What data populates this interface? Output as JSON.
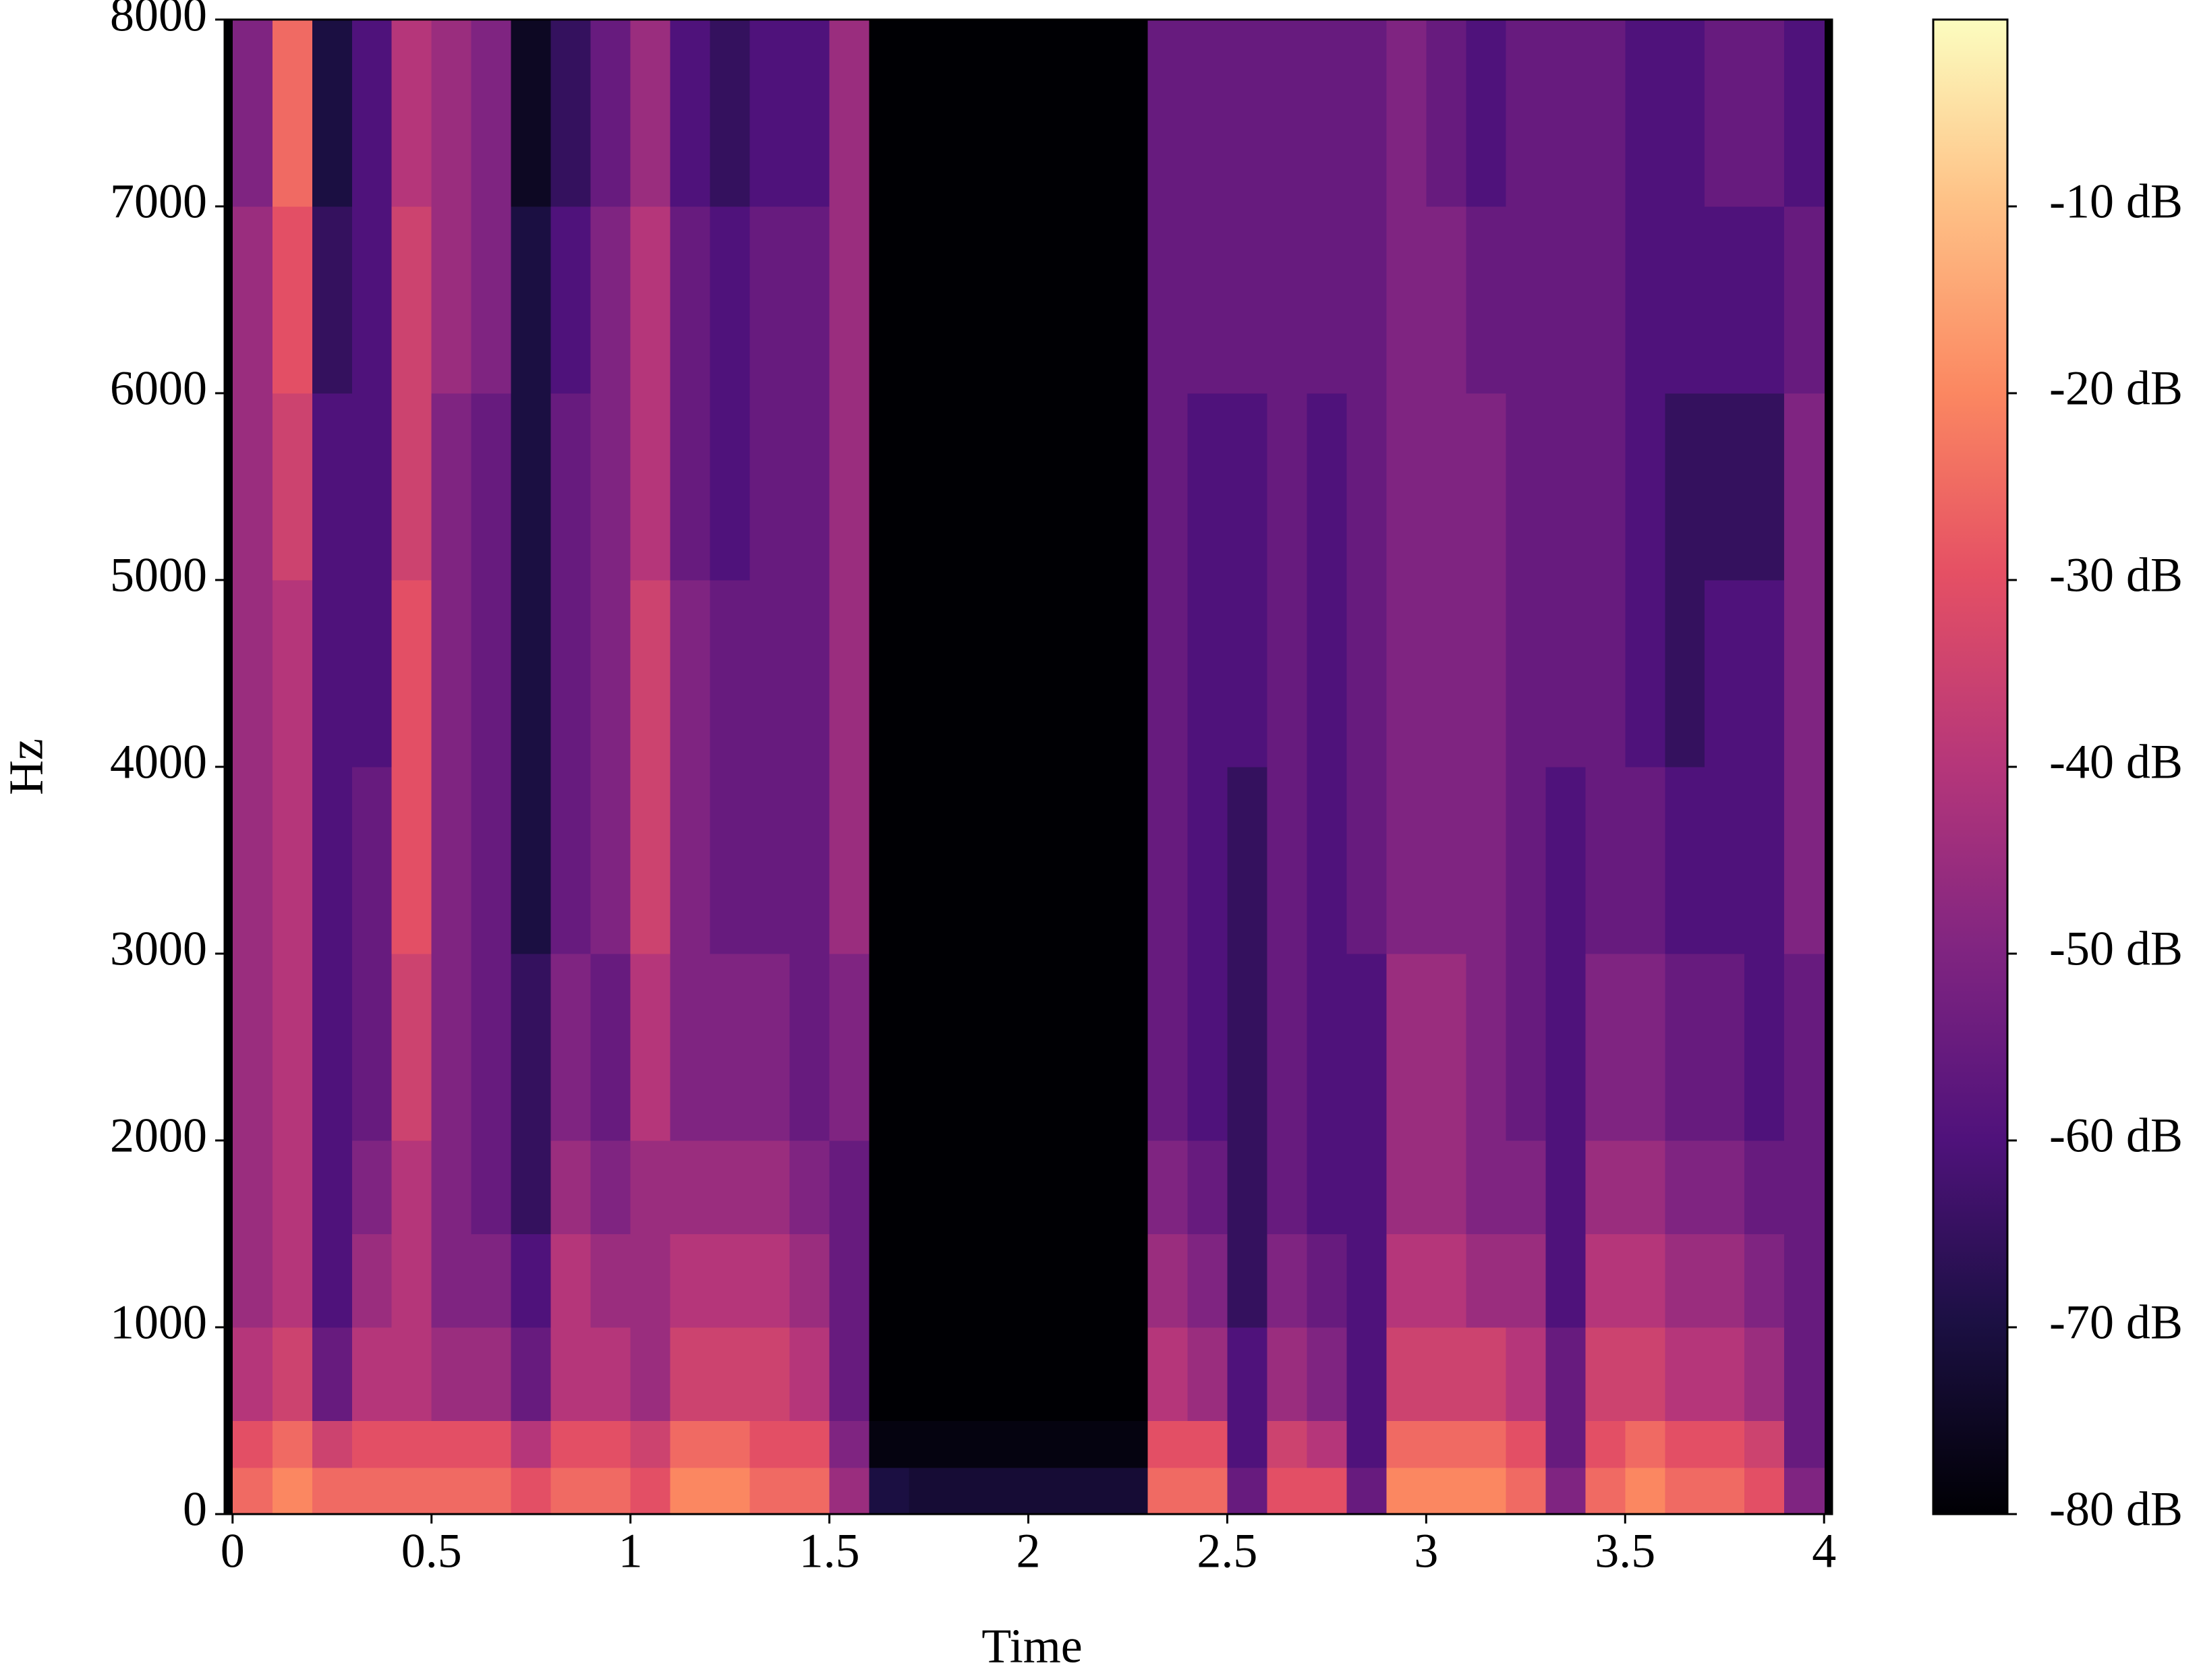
{
  "chart_data": {
    "type": "heatmap",
    "xlabel": "Time",
    "ylabel": "Hz",
    "colormap": "magma",
    "x_bins": [
      0,
      0.1,
      0.2,
      0.3,
      0.4,
      0.5,
      0.6,
      0.7,
      0.8,
      0.9,
      1,
      1.1,
      1.2,
      1.3,
      1.4,
      1.5,
      1.6,
      1.7,
      1.8,
      1.9,
      2,
      2.1,
      2.2,
      2.3,
      2.4,
      2.5,
      2.6,
      2.7,
      2.8,
      2.9,
      3,
      3.1,
      3.2,
      3.3,
      3.4,
      3.5,
      3.6,
      3.7,
      3.8,
      3.9,
      4
    ],
    "y_bins": [
      0,
      250,
      500,
      1000,
      1500,
      2000,
      3000,
      4000,
      5000,
      6000,
      7000,
      8000
    ],
    "z": [
      [
        -25,
        -20,
        -25,
        -25,
        -25,
        -25,
        -25,
        -30,
        -25,
        -25,
        -30,
        -20,
        -20,
        -25,
        -25,
        -45,
        -70,
        -72,
        -72,
        -72,
        -72,
        -72,
        -72,
        -25,
        -25,
        -55,
        -30,
        -30,
        -55,
        -20,
        -20,
        -20,
        -25,
        -50,
        -25,
        -20,
        -25,
        -25,
        -30,
        -50
      ],
      [
        -30,
        -25,
        -35,
        -30,
        -30,
        -30,
        -30,
        -40,
        -30,
        -30,
        -35,
        -25,
        -25,
        -30,
        -30,
        -50,
        -78,
        -78,
        -78,
        -78,
        -78,
        -78,
        -78,
        -30,
        -30,
        -60,
        -35,
        -40,
        -60,
        -25,
        -25,
        -25,
        -30,
        -55,
        -30,
        -25,
        -30,
        -30,
        -35,
        -55
      ],
      [
        -40,
        -35,
        -55,
        -40,
        -40,
        -45,
        -45,
        -55,
        -40,
        -40,
        -45,
        -35,
        -35,
        -35,
        -40,
        -55,
        -80,
        -80,
        -80,
        -80,
        -80,
        -80,
        -80,
        -40,
        -45,
        -60,
        -45,
        -50,
        -60,
        -35,
        -35,
        -35,
        -40,
        -55,
        -35,
        -35,
        -40,
        -40,
        -45,
        -55
      ],
      [
        -45,
        -40,
        -60,
        -45,
        -40,
        -50,
        -50,
        -60,
        -40,
        -45,
        -45,
        -40,
        -40,
        -40,
        -45,
        -55,
        -80,
        -80,
        -80,
        -80,
        -80,
        -80,
        -80,
        -45,
        -50,
        -65,
        -50,
        -55,
        -60,
        -40,
        -40,
        -45,
        -45,
        -60,
        -40,
        -40,
        -45,
        -45,
        -50,
        -55
      ],
      [
        -45,
        -40,
        -60,
        -50,
        -40,
        -50,
        -55,
        -65,
        -45,
        -50,
        -45,
        -45,
        -45,
        -45,
        -50,
        -55,
        -80,
        -80,
        -80,
        -80,
        -80,
        -80,
        -80,
        -50,
        -55,
        -65,
        -55,
        -60,
        -60,
        -45,
        -45,
        -50,
        -50,
        -60,
        -45,
        -45,
        -50,
        -50,
        -55,
        -55
      ],
      [
        -45,
        -40,
        -60,
        -55,
        -35,
        -50,
        -55,
        -65,
        -50,
        -55,
        -40,
        -50,
        -50,
        -50,
        -55,
        -50,
        -80,
        -80,
        -80,
        -80,
        -80,
        -80,
        -80,
        -55,
        -60,
        -65,
        -55,
        -60,
        -60,
        -45,
        -45,
        -50,
        -55,
        -60,
        -50,
        -50,
        -55,
        -55,
        -60,
        -55
      ],
      [
        -45,
        -40,
        -60,
        -55,
        -30,
        -50,
        -55,
        -70,
        -55,
        -50,
        -35,
        -50,
        -55,
        -55,
        -55,
        -45,
        -80,
        -80,
        -80,
        -80,
        -80,
        -80,
        -80,
        -55,
        -60,
        -65,
        -55,
        -60,
        -55,
        -50,
        -50,
        -50,
        -55,
        -60,
        -55,
        -55,
        -60,
        -60,
        -60,
        -50
      ],
      [
        -45,
        -40,
        -60,
        -60,
        -30,
        -50,
        -55,
        -70,
        -55,
        -50,
        -35,
        -50,
        -55,
        -55,
        -55,
        -45,
        -80,
        -80,
        -80,
        -80,
        -80,
        -80,
        -80,
        -55,
        -60,
        -60,
        -55,
        -60,
        -55,
        -50,
        -50,
        -50,
        -55,
        -55,
        -55,
        -60,
        -65,
        -60,
        -60,
        -50
      ],
      [
        -45,
        -35,
        -60,
        -60,
        -35,
        -50,
        -55,
        -70,
        -55,
        -50,
        -40,
        -55,
        -60,
        -55,
        -55,
        -45,
        -80,
        -80,
        -80,
        -80,
        -80,
        -80,
        -80,
        -55,
        -60,
        -60,
        -55,
        -60,
        -55,
        -50,
        -50,
        -50,
        -55,
        -55,
        -55,
        -60,
        -65,
        -65,
        -65,
        -50
      ],
      [
        -45,
        -30,
        -65,
        -60,
        -35,
        -45,
        -50,
        -70,
        -60,
        -50,
        -40,
        -55,
        -60,
        -55,
        -55,
        -45,
        -80,
        -80,
        -80,
        -80,
        -80,
        -80,
        -80,
        -55,
        -55,
        -55,
        -55,
        -55,
        -55,
        -50,
        -50,
        -55,
        -55,
        -55,
        -55,
        -60,
        -60,
        -60,
        -60,
        -55
      ],
      [
        -50,
        -25,
        -70,
        -60,
        -40,
        -45,
        -50,
        -75,
        -65,
        -55,
        -45,
        -60,
        -65,
        -60,
        -60,
        -45,
        -80,
        -80,
        -80,
        -80,
        -80,
        -80,
        -80,
        -55,
        -55,
        -55,
        -55,
        -55,
        -55,
        -50,
        -55,
        -60,
        -55,
        -55,
        -55,
        -60,
        -60,
        -55,
        -55,
        -60
      ]
    ],
    "xlim": [
      -0.02,
      4.02
    ],
    "ylim": [
      0,
      8000
    ],
    "xticks": [
      0,
      0.5,
      1,
      1.5,
      2,
      2.5,
      3,
      3.5,
      4
    ],
    "yticks": [
      0,
      1000,
      2000,
      3000,
      4000,
      5000,
      6000,
      7000,
      8000
    ],
    "clim": [
      -80,
      0
    ],
    "cticks": [
      {
        "value": -10,
        "label": "-10 dB"
      },
      {
        "value": -20,
        "label": "-20 dB"
      },
      {
        "value": -30,
        "label": "-30 dB"
      },
      {
        "value": -40,
        "label": "-40 dB"
      },
      {
        "value": -50,
        "label": "-50 dB"
      },
      {
        "value": -60,
        "label": "-60 dB"
      },
      {
        "value": -70,
        "label": "-70 dB"
      },
      {
        "value": -80,
        "label": "-80 dB"
      }
    ]
  }
}
